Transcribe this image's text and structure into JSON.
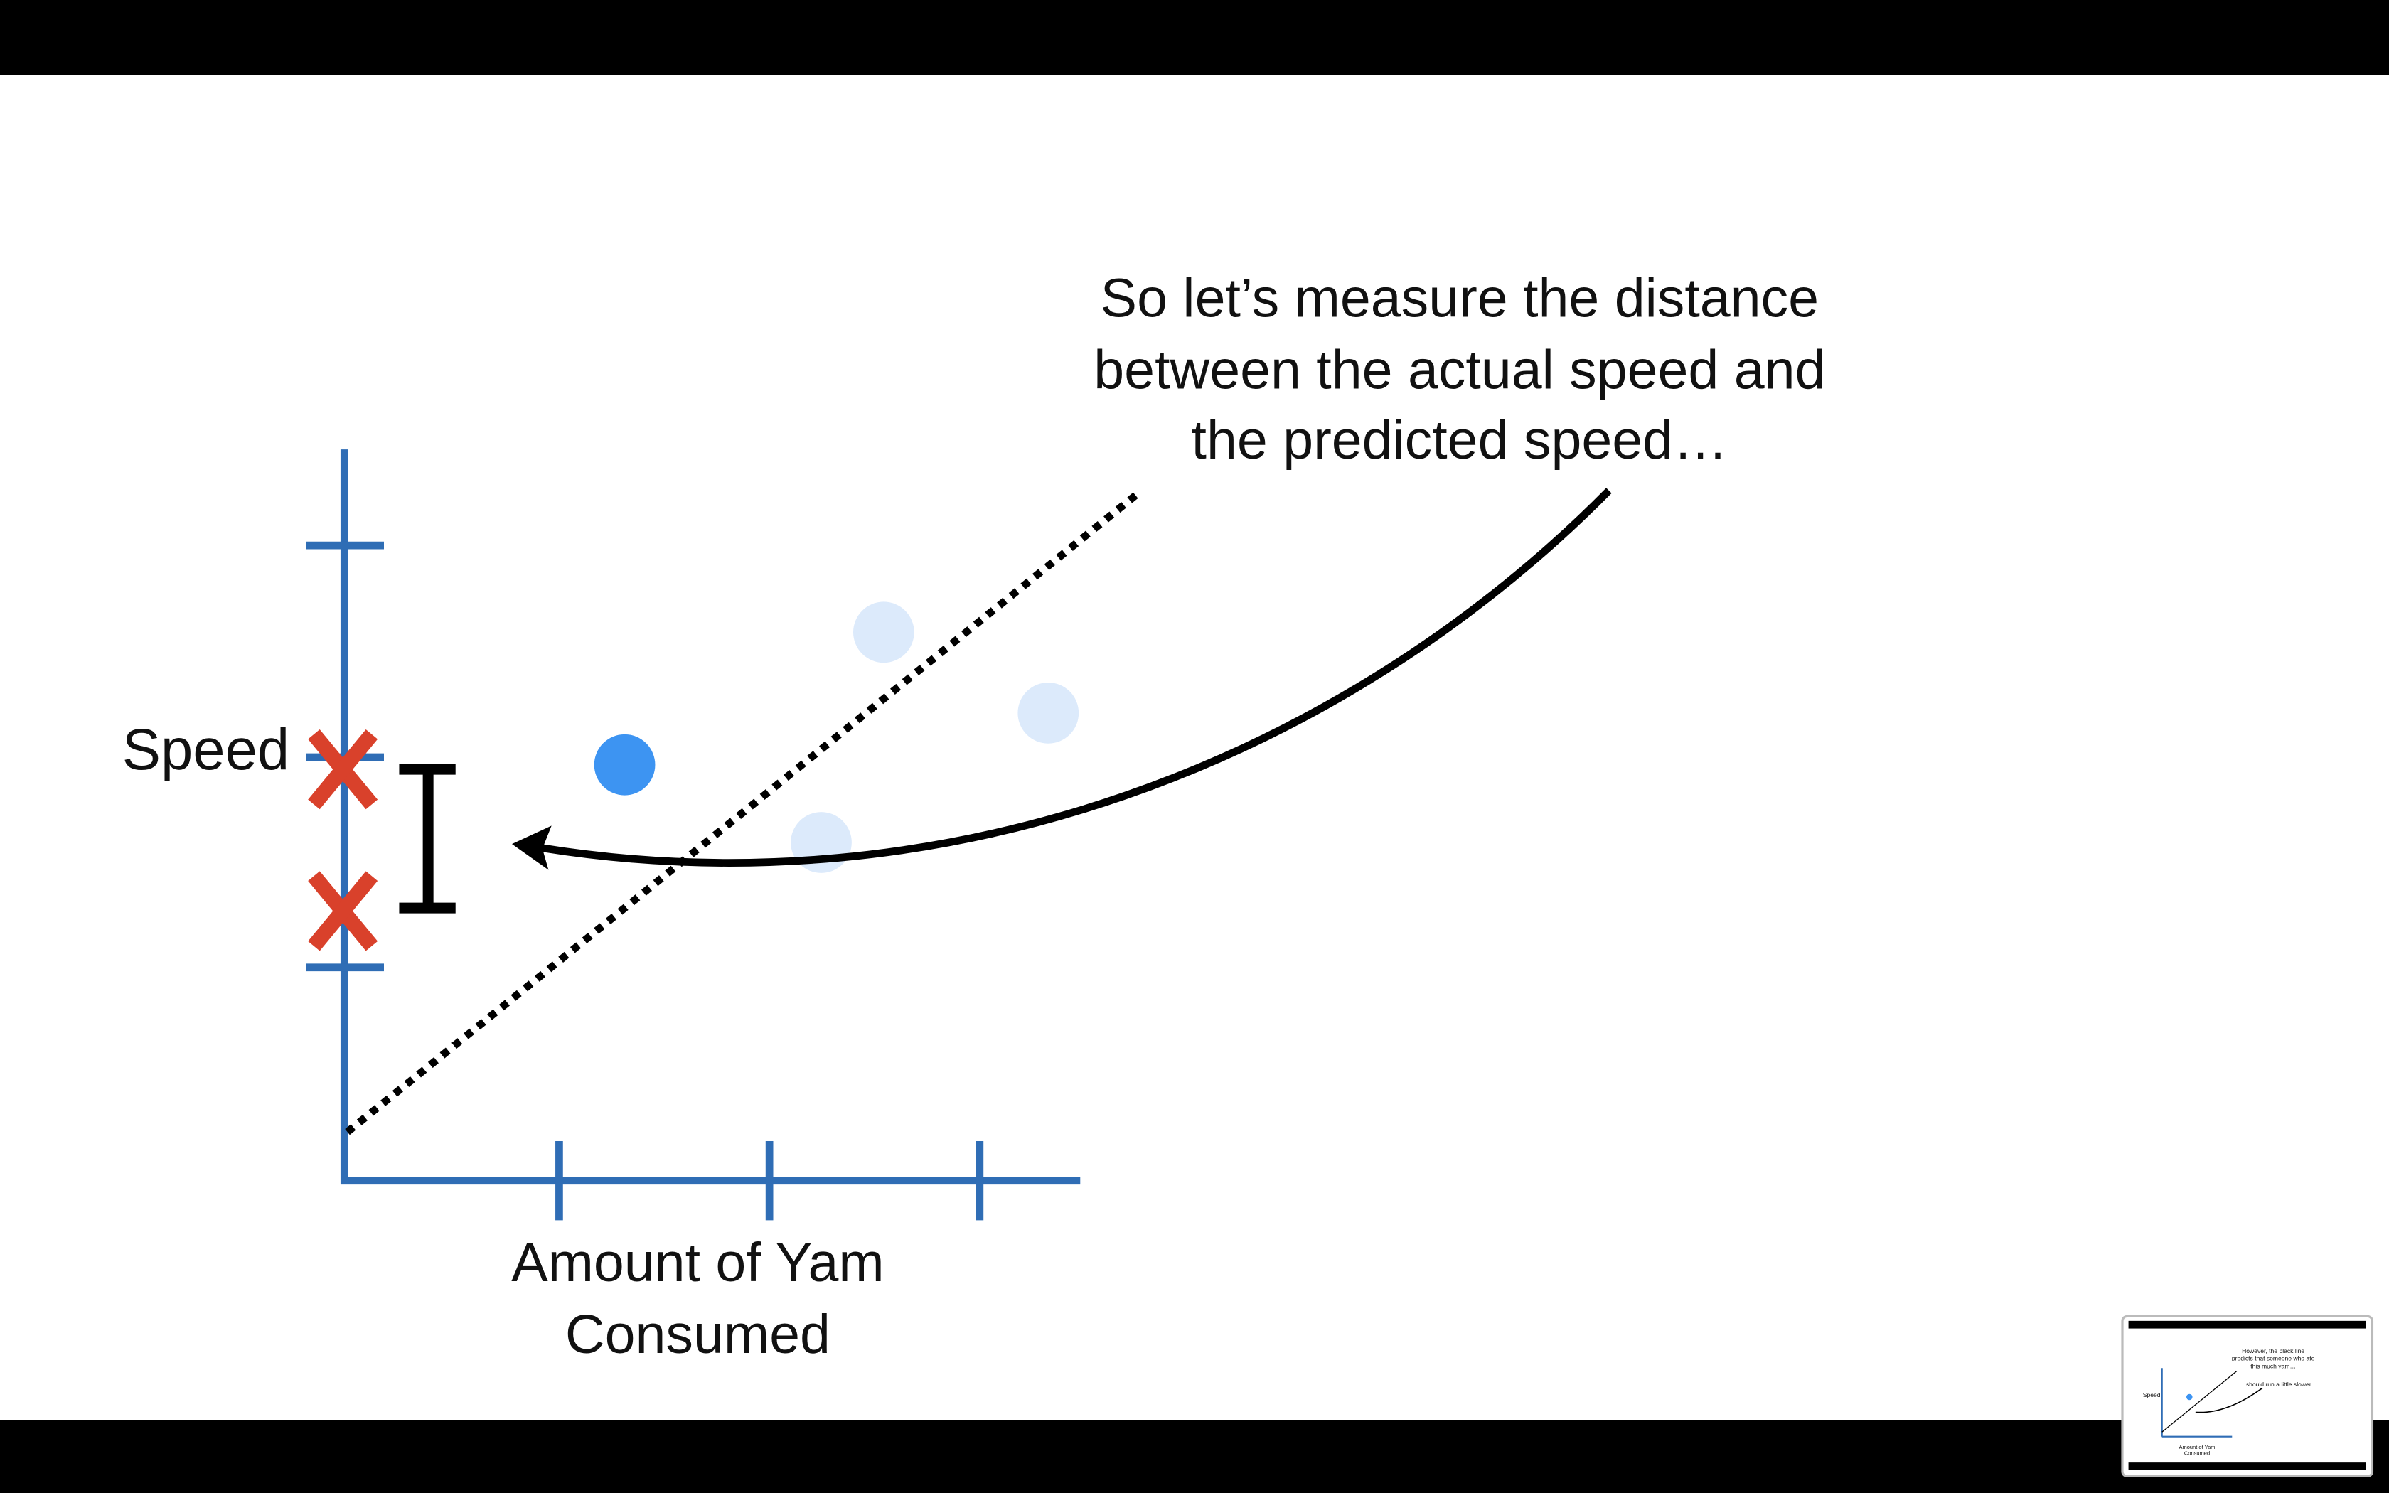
{
  "slide": {
    "caption": [
      "So let’s measure the distance",
      "between the actual speed and",
      "the predicted speed…"
    ],
    "y_label": "Speed",
    "x_label": [
      "Amount of Yam",
      "Consumed"
    ]
  },
  "thumbnail": {
    "caption": [
      "However, the black line",
      "predicts that someone who ate",
      "this much yam…"
    ],
    "note": "…should run a little slower.",
    "y_label": "Speed",
    "x_label": [
      "Amount of Yam",
      "Consumed"
    ]
  }
}
